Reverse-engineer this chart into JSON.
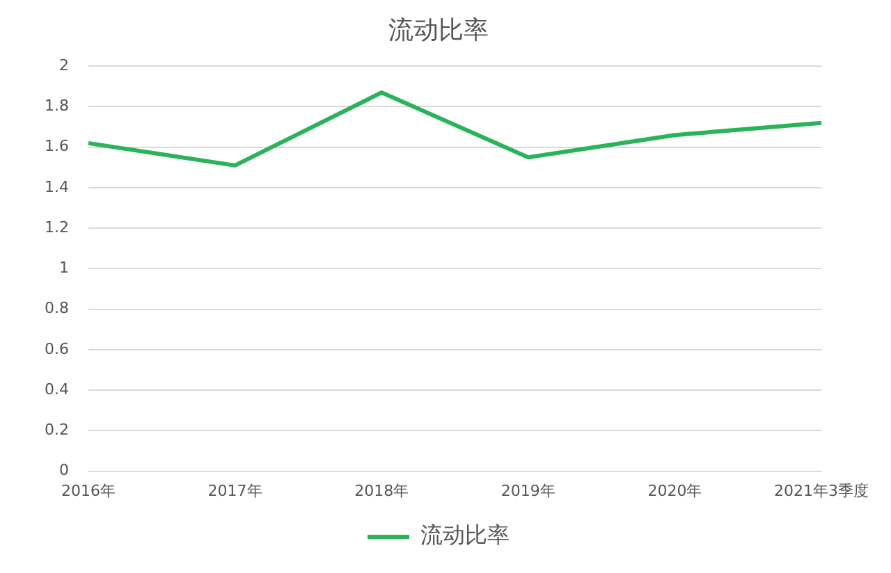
{
  "chart_data": {
    "type": "line",
    "title": "流动比率",
    "categories": [
      "2016年",
      "2017年",
      "2018年",
      "2019年",
      "2020年",
      "2021年3季度"
    ],
    "series": [
      {
        "name": "流动比率",
        "color": "#2ab45a",
        "values": [
          1.62,
          1.51,
          1.87,
          1.55,
          1.66,
          1.72
        ]
      }
    ],
    "ylim": [
      0,
      2
    ],
    "yticks": [
      0,
      0.2,
      0.4,
      0.6,
      0.8,
      1,
      1.2,
      1.4,
      1.6,
      1.8,
      2
    ],
    "grid": "y",
    "legend": "bottom",
    "marker": "none",
    "line_style": "solid"
  }
}
